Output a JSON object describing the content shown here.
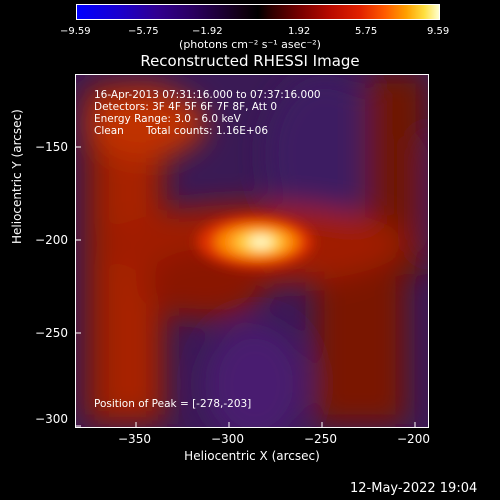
{
  "colorbar": {
    "ticks": [
      "−9.59",
      "−5.75",
      "−1.92",
      "1.92",
      "5.75",
      "9.59"
    ],
    "units": "(photons cm⁻² s⁻¹ asec⁻²)"
  },
  "chart_data": {
    "type": "heatmap",
    "title": "Reconstructed RHESSI Image",
    "xlabel": "Heliocentric X (arcsec)",
    "ylabel": "Heliocentric Y (arcsec)",
    "xlim": [
      -383,
      -193
    ],
    "ylim": [
      -303,
      -113
    ],
    "xticks": [
      -350,
      -300,
      -250,
      -200
    ],
    "yticks": [
      -150,
      -200,
      -250,
      -300
    ],
    "colorscale_range": [
      -9.59,
      9.59
    ],
    "peak": {
      "x": -278,
      "y": -203,
      "value": 9.59
    },
    "annotations": {
      "time": "16-Apr-2013 07:31:16.000 to 07:37:16.000",
      "detectors": "Detectors: 3F 4F 5F 6F 7F 8F, Att 0",
      "energy": "Energy Range: 3.0 - 6.0 keV",
      "method": "Clean",
      "counts": "Total counts: 1.16E+06",
      "peak_label": "Position of Peak = [-278,-203]"
    }
  },
  "timestamp": "12-May-2022 19:04"
}
